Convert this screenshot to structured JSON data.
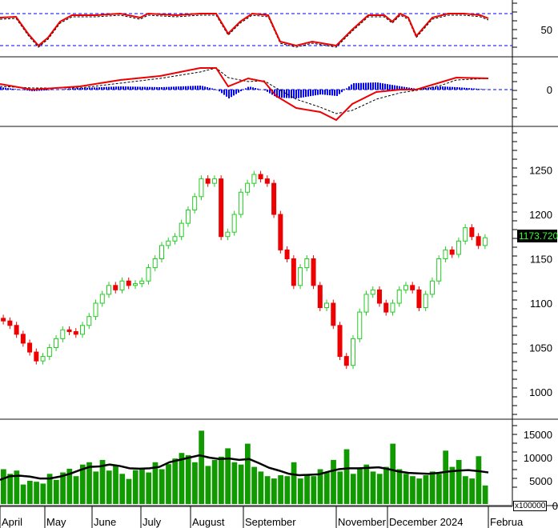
{
  "chart_data": [
    {
      "type": "line",
      "panel": "rsi",
      "yticks": [
        50
      ],
      "ref_lines": [
        70,
        30
      ],
      "x": [
        0,
        20,
        35,
        48,
        60,
        75,
        90,
        120,
        150,
        175,
        185,
        220,
        250,
        270,
        285,
        300,
        315,
        335,
        350,
        370,
        390,
        420,
        440,
        460,
        480,
        490,
        500,
        510,
        520,
        540,
        560,
        580,
        600,
        610
      ],
      "values": [
        65,
        66,
        45,
        30,
        40,
        60,
        68,
        68,
        70,
        65,
        70,
        68,
        70,
        70,
        45,
        60,
        70,
        68,
        35,
        30,
        35,
        30,
        50,
        68,
        68,
        60,
        70,
        65,
        42,
        65,
        70,
        70,
        68,
        64
      ]
    },
    {
      "type": "line",
      "panel": "macd",
      "yticks": [
        0
      ],
      "x": [
        0,
        40,
        100,
        150,
        200,
        250,
        270,
        285,
        310,
        330,
        345,
        370,
        400,
        420,
        440,
        470,
        500,
        520,
        550,
        570,
        610
      ],
      "series": [
        {
          "values": [
            7,
            0,
            4,
            12,
            17,
            27,
            27,
            4,
            14,
            10,
            -8,
            -23,
            -28,
            -38,
            -18,
            -3,
            0,
            0,
            9,
            15,
            14
          ]
        },
        {
          "values": [
            4,
            2,
            2,
            8,
            14,
            22,
            27,
            15,
            10,
            11,
            2,
            -12,
            -22,
            -30,
            -26,
            -12,
            -4,
            -1,
            5,
            12,
            14
          ]
        }
      ]
    },
    {
      "type": "candlestick",
      "panel": "price",
      "ylim": [
        975,
        1290
      ],
      "yticks": [
        1000,
        1050,
        1100,
        1150,
        1200,
        1250
      ],
      "last_price": "1173.720",
      "closes": [
        1080,
        1075,
        1065,
        1055,
        1045,
        1035,
        1040,
        1050,
        1060,
        1070,
        1068,
        1065,
        1075,
        1085,
        1100,
        1110,
        1120,
        1115,
        1125,
        1120,
        1122,
        1125,
        1140,
        1150,
        1165,
        1170,
        1175,
        1190,
        1205,
        1220,
        1240,
        1235,
        1240,
        1175,
        1180,
        1200,
        1225,
        1235,
        1245,
        1240,
        1235,
        1200,
        1160,
        1150,
        1120,
        1140,
        1150,
        1120,
        1095,
        1100,
        1075,
        1040,
        1030,
        1060,
        1090,
        1110,
        1115,
        1100,
        1090,
        1100,
        1115,
        1120,
        1115,
        1095,
        1110,
        1125,
        1150,
        1160,
        1155,
        1170,
        1185,
        1175,
        1165,
        1173.72
      ],
      "xlabels": [
        "April",
        "May",
        "June",
        "July",
        "August",
        "September",
        "November",
        "December 2024",
        "Februa"
      ]
    },
    {
      "type": "bar",
      "panel": "volume",
      "unit": "x100000",
      "yticks": [
        0,
        5000,
        10000,
        15000
      ],
      "values": [
        7500,
        6500,
        7200,
        4200,
        5000,
        4800,
        4400,
        6500,
        5200,
        6800,
        7600,
        6000,
        8500,
        9000,
        7000,
        9500,
        7200,
        8200,
        6500,
        5400,
        7300,
        7800,
        6800,
        9000,
        7500,
        8600,
        9800,
        11000,
        10500,
        9000,
        15800,
        8200,
        9500,
        10200,
        12000,
        9000,
        8500,
        13000,
        8000,
        7000,
        6000,
        5500,
        6200,
        6000,
        9000,
        5500,
        6200,
        6000,
        7500,
        6800,
        9500,
        7000,
        11800,
        6500,
        7500,
        8500,
        7000,
        6500,
        8000,
        13000,
        7500,
        6500,
        6000,
        5500,
        6200,
        7000,
        6500,
        11500,
        8000,
        9500,
        6000,
        5500,
        10300,
        4000
      ],
      "ma": [
        5200,
        6000,
        6100,
        5900,
        5500,
        5500,
        5900,
        6500,
        7300,
        8000,
        8100,
        8500,
        8200,
        7700,
        7600,
        7700,
        8000,
        9000,
        9500,
        10000,
        10500,
        10000,
        9700,
        9800,
        9500,
        9700,
        8800,
        7800,
        7200,
        6500,
        6200,
        6300,
        6400,
        7000,
        7500,
        7700,
        7700,
        7800,
        7900,
        7500,
        7000,
        6700,
        6600,
        6500,
        6700,
        7000,
        7200,
        7300,
        7100,
        6800
      ]
    }
  ]
}
